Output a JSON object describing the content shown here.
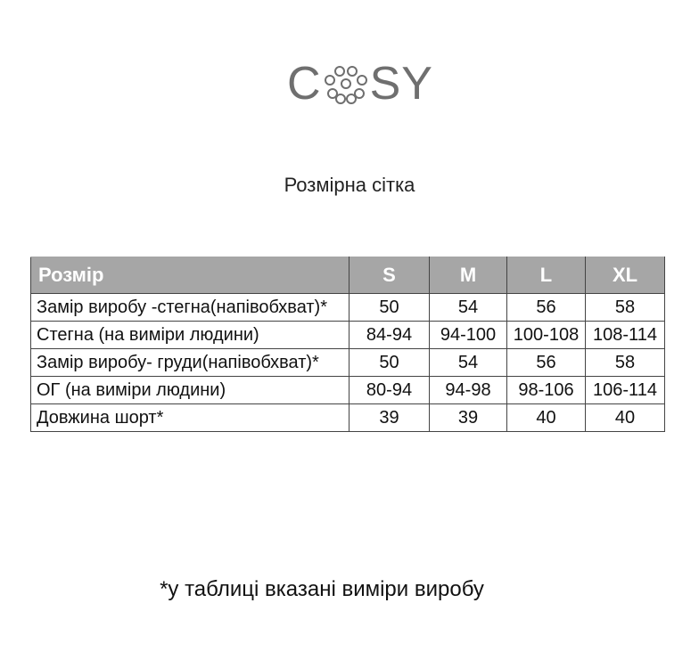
{
  "logo": {
    "text": "COSY",
    "color": "#6f6f6f"
  },
  "title": "Розмірна сітка",
  "table": {
    "header": [
      "Розмір",
      "S",
      "M",
      "L",
      "XL"
    ],
    "header_bg": "#a6a6a6",
    "rows": [
      [
        "Замір виробу -стегна(напівобхват)*",
        "50",
        "54",
        "56",
        "58"
      ],
      [
        "Стегна (на виміри людини)",
        "84-94",
        "94-100",
        "100-108",
        "108-114"
      ],
      [
        "Замір виробу- груди(напівобхват)*",
        "50",
        "54",
        "56",
        "58"
      ],
      [
        "ОГ (на виміри людини)",
        "80-94",
        "94-98",
        "98-106",
        "106-114"
      ],
      [
        "Довжина шорт*",
        "39",
        "39",
        "40",
        "40"
      ]
    ]
  },
  "footnote": "*у таблиці вказані виміри виробу"
}
